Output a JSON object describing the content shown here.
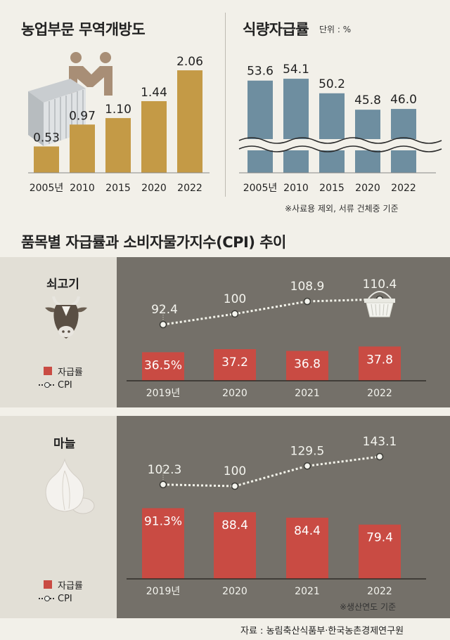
{
  "openness": {
    "title": "농업부문 무역개방도",
    "chart_data": {
      "type": "bar",
      "title": "농업부문 무역개방도",
      "categories": [
        "2005년",
        "2010",
        "2015",
        "2020",
        "2022"
      ],
      "values": [
        0.53,
        0.97,
        1.1,
        1.44,
        2.06
      ],
      "value_labels": [
        "0.53",
        "0.97",
        "1.10",
        "1.44",
        "2.06"
      ],
      "ylim": [
        0,
        2.4
      ],
      "color": "#c49a46"
    }
  },
  "selfsufficiency": {
    "title": "식량자급률",
    "unit": "단위 : %",
    "note": "※사료용 제외, 서류 건체중 기준",
    "chart_data": {
      "type": "bar",
      "title": "식량자급률",
      "categories": [
        "2005년",
        "2010",
        "2015",
        "2020",
        "2022"
      ],
      "values": [
        53.6,
        54.1,
        50.2,
        45.8,
        46.0
      ],
      "value_labels": [
        "53.6",
        "54.1",
        "50.2",
        "45.8",
        "46.0"
      ],
      "axis_break": true,
      "color": "#6e8ea0"
    }
  },
  "trend_title": "품목별 자급률과 소비자물가지수(CPI) 추이",
  "legend": {
    "bar": "자급률",
    "line": "CPI"
  },
  "beef": {
    "label": "쇠고기",
    "chart_data": {
      "type": "bar+line",
      "categories": [
        "2019년",
        "2020",
        "2021",
        "2022"
      ],
      "bars": {
        "name": "자급률",
        "values": [
          36.5,
          37.2,
          36.8,
          37.8
        ],
        "labels": [
          "36.5%",
          "37.2",
          "36.8",
          "37.8"
        ]
      },
      "line": {
        "name": "CPI",
        "values": [
          92.4,
          100,
          108.9,
          110.4
        ],
        "labels": [
          "92.4",
          "100",
          "108.9",
          "110.4"
        ]
      }
    }
  },
  "garlic": {
    "label": "마늘",
    "note": "※생산연도 기준",
    "chart_data": {
      "type": "bar+line",
      "categories": [
        "2019년",
        "2020",
        "2021",
        "2022"
      ],
      "bars": {
        "name": "자급률",
        "values": [
          91.3,
          88.4,
          84.4,
          79.4
        ],
        "labels": [
          "91.3%",
          "88.4",
          "84.4",
          "79.4"
        ]
      },
      "line": {
        "name": "CPI",
        "values": [
          102.3,
          100,
          129.5,
          143.1
        ],
        "labels": [
          "102.3",
          "100",
          "129.5",
          "143.1"
        ]
      }
    }
  },
  "source": "자료 : 농림축산식품부·한국농촌경제연구원",
  "colors": {
    "bar_red": "#c94b43",
    "gold": "#c49a46",
    "steel": "#6e8ea0",
    "panel_dark": "#747069"
  }
}
